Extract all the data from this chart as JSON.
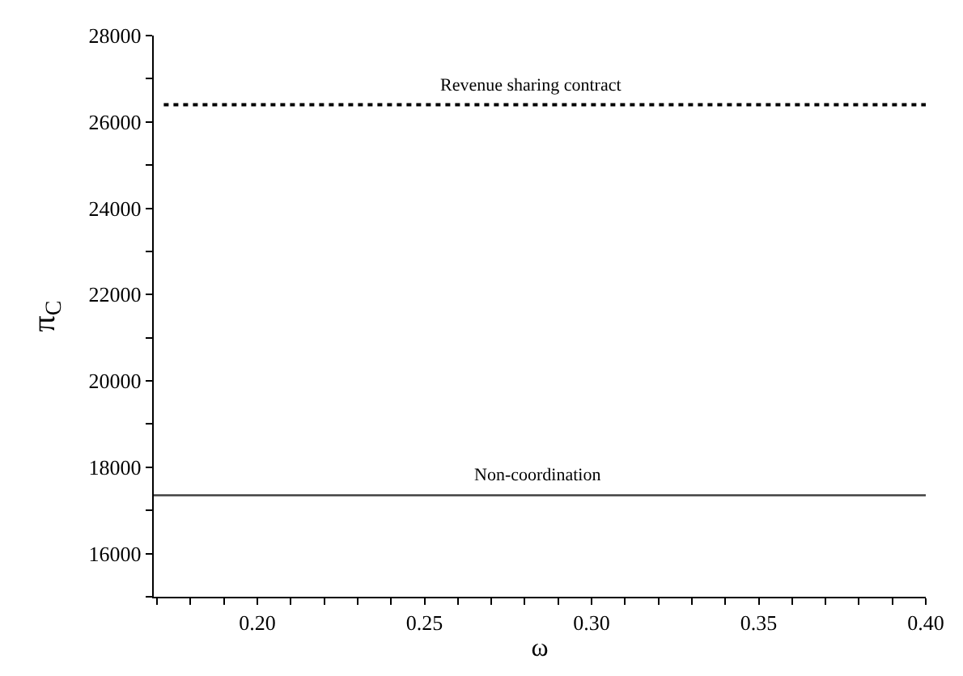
{
  "chart_data": {
    "type": "line",
    "xlabel": "ω",
    "ylabel": "π$_{C}$",
    "series": [
      {
        "color": "#000000",
        "line_style": "dotted",
        "x": [
          0.172,
          0.4
        ],
        "values": [
          26400,
          26400
        ]
      },
      {
        "color": "#404040",
        "line_style": "solid",
        "x": [
          0.169,
          0.4
        ],
        "values": [
          17350,
          17350
        ]
      }
    ],
    "annotations": [
      {
        "text": "Revenue sharing contract",
        "x": 0.282,
        "y": 26400
      },
      {
        "text": "Non-coordination",
        "x": 0.284,
        "y": 17350
      }
    ],
    "xlim": [
      0.169,
      0.4
    ],
    "ylim": [
      15000,
      28000
    ],
    "xticks": [
      {
        "value": 0.17,
        "label": null
      },
      {
        "value": 0.18,
        "label": null
      },
      {
        "value": 0.19,
        "label": null
      },
      {
        "value": 0.2,
        "label": "0.20"
      },
      {
        "value": 0.21,
        "label": null
      },
      {
        "value": 0.22,
        "label": null
      },
      {
        "value": 0.23,
        "label": null
      },
      {
        "value": 0.24,
        "label": null
      },
      {
        "value": 0.25,
        "label": "0.25"
      },
      {
        "value": 0.26,
        "label": null
      },
      {
        "value": 0.27,
        "label": null
      },
      {
        "value": 0.28,
        "label": null
      },
      {
        "value": 0.29,
        "label": null
      },
      {
        "value": 0.3,
        "label": "0.30"
      },
      {
        "value": 0.31,
        "label": null
      },
      {
        "value": 0.32,
        "label": null
      },
      {
        "value": 0.33,
        "label": null
      },
      {
        "value": 0.34,
        "label": null
      },
      {
        "value": 0.35,
        "label": "0.35"
      },
      {
        "value": 0.36,
        "label": null
      },
      {
        "value": 0.37,
        "label": null
      },
      {
        "value": 0.38,
        "label": null
      },
      {
        "value": 0.39,
        "label": null
      },
      {
        "value": 0.4,
        "label": "0.40"
      }
    ],
    "yticks": [
      {
        "value": 15000,
        "label": null
      },
      16000,
      {
        "value": 17000,
        "label": null
      },
      18000,
      {
        "value": 19000,
        "label": null
      },
      20000,
      {
        "value": 21000,
        "label": null
      },
      22000,
      {
        "value": 23000,
        "label": null
      },
      24000,
      {
        "value": 25000,
        "label": null
      },
      26000,
      {
        "value": 27000,
        "label": null
      },
      28000
    ],
    "marker": "none"
  }
}
